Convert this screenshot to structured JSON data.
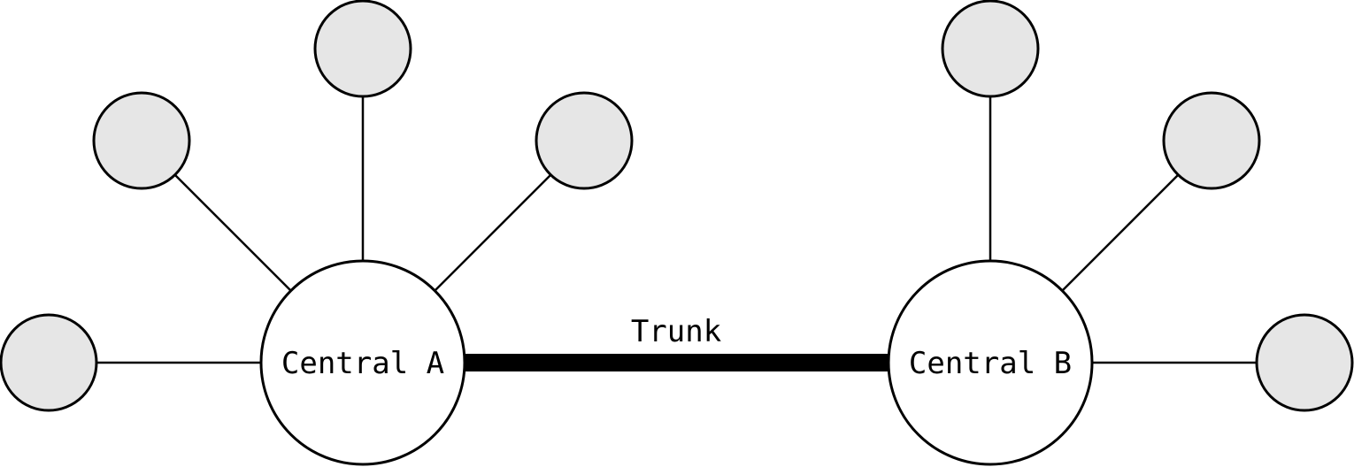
{
  "diagram": {
    "type": "network-topology",
    "hubs": [
      {
        "id": "central-a",
        "label": "Central A"
      },
      {
        "id": "central-b",
        "label": "Central B"
      }
    ],
    "trunk": {
      "label": "Trunk",
      "from": "central-a",
      "to": "central-b"
    },
    "leaves": {
      "central-a": 4,
      "central-b": 3
    }
  },
  "colors": {
    "leaf_fill": "#e6e6e6",
    "hub_fill": "#ffffff",
    "stroke": "#000000"
  }
}
